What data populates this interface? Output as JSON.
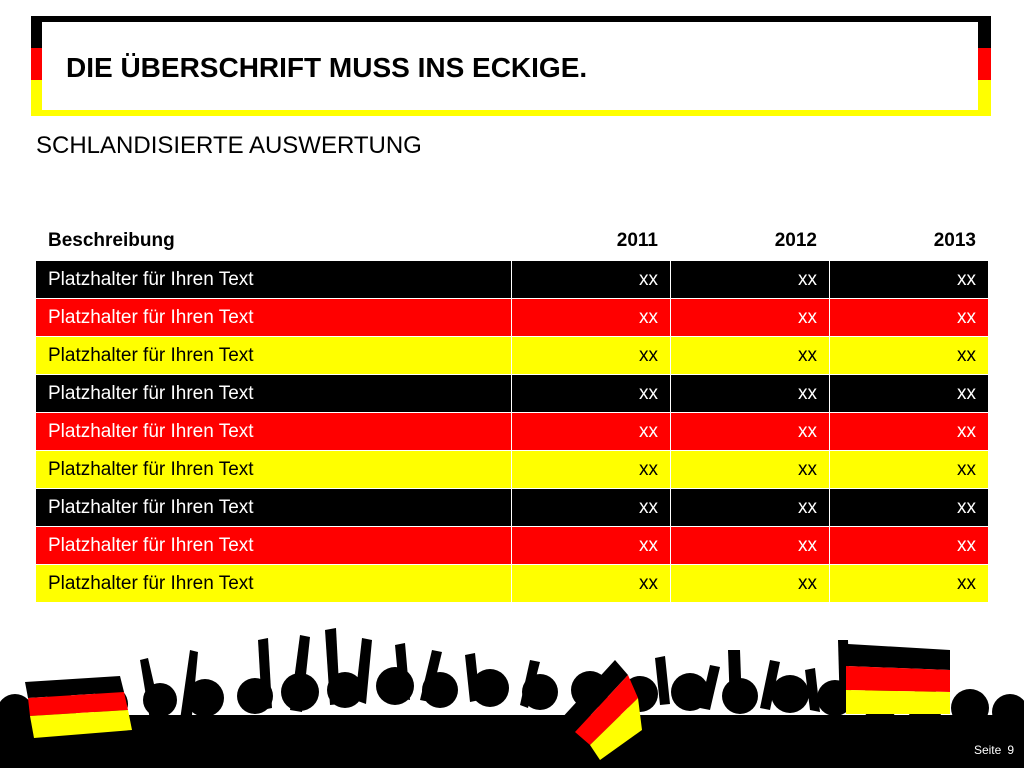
{
  "title": "DIE ÜBERSCHRIFT MUSS INS ECKIGE.",
  "subtitle": "SCHLANDISIERTE AUSWERTUNG",
  "colors": {
    "black": "#000000",
    "red": "#ff0000",
    "yellow": "#ffff00"
  },
  "table": {
    "headers": [
      "Beschreibung",
      "2011",
      "2012",
      "2013"
    ],
    "rows": [
      {
        "label": "Platzhalter für Ihren Text",
        "values": [
          "xx",
          "xx",
          "xx"
        ],
        "color": "black"
      },
      {
        "label": "Platzhalter für Ihren Text",
        "values": [
          "xx",
          "xx",
          "xx"
        ],
        "color": "red"
      },
      {
        "label": "Platzhalter für Ihren Text",
        "values": [
          "xx",
          "xx",
          "xx"
        ],
        "color": "yellow"
      },
      {
        "label": "Platzhalter für Ihren Text",
        "values": [
          "xx",
          "xx",
          "xx"
        ],
        "color": "black"
      },
      {
        "label": "Platzhalter für Ihren Text",
        "values": [
          "xx",
          "xx",
          "xx"
        ],
        "color": "red"
      },
      {
        "label": "Platzhalter für Ihren Text",
        "values": [
          "xx",
          "xx",
          "xx"
        ],
        "color": "yellow"
      },
      {
        "label": "Platzhalter für Ihren Text",
        "values": [
          "xx",
          "xx",
          "xx"
        ],
        "color": "black"
      },
      {
        "label": "Platzhalter für Ihren Text",
        "values": [
          "xx",
          "xx",
          "xx"
        ],
        "color": "red"
      },
      {
        "label": "Platzhalter für Ihren Text",
        "values": [
          "xx",
          "xx",
          "xx"
        ],
        "color": "yellow"
      }
    ]
  },
  "footer": {
    "page_label": "Seite",
    "page_number": "9"
  },
  "illustration": {
    "icon": "cheering-crowd-with-german-flags"
  }
}
